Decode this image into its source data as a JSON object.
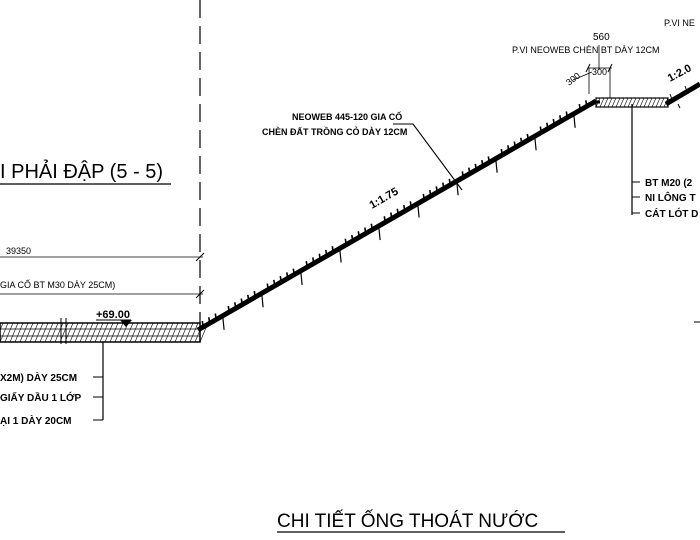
{
  "section_title": "I PHẢI ĐẬP (5 - 5)",
  "detail_title": "CHI TIẾT ỐNG THOÁT NƯỚC",
  "dim_39350": "39350",
  "label_bt_m30": "GIA CỐ BT M30 DÀY 25CM)",
  "elevation": "+69.00",
  "left_layers": [
    "X2M) DÀY 25CM",
    "GIẤY DẦU 1 LỚP",
    "ẠI 1 DÀY 20CM"
  ],
  "neoweb_label_line1": "NEOWEB 445-120 GIA CỐ",
  "neoweb_label_line2": "CHÈN ĐẤT TRỒNG CỎ DÀY 12CM",
  "slope_main": "1:1.75",
  "slope_upper": "1:2.0",
  "dim_560": "560",
  "berm_label": "P.VI NEOWEB CHÈN BT DÀY 12CM",
  "dim_300_a": "300",
  "dim_300_b": "300",
  "top_right_label": "P.VI NE",
  "right_layers": [
    "BT M20 (2",
    "NI LÔNG T",
    "CÁT LÓT D"
  ]
}
